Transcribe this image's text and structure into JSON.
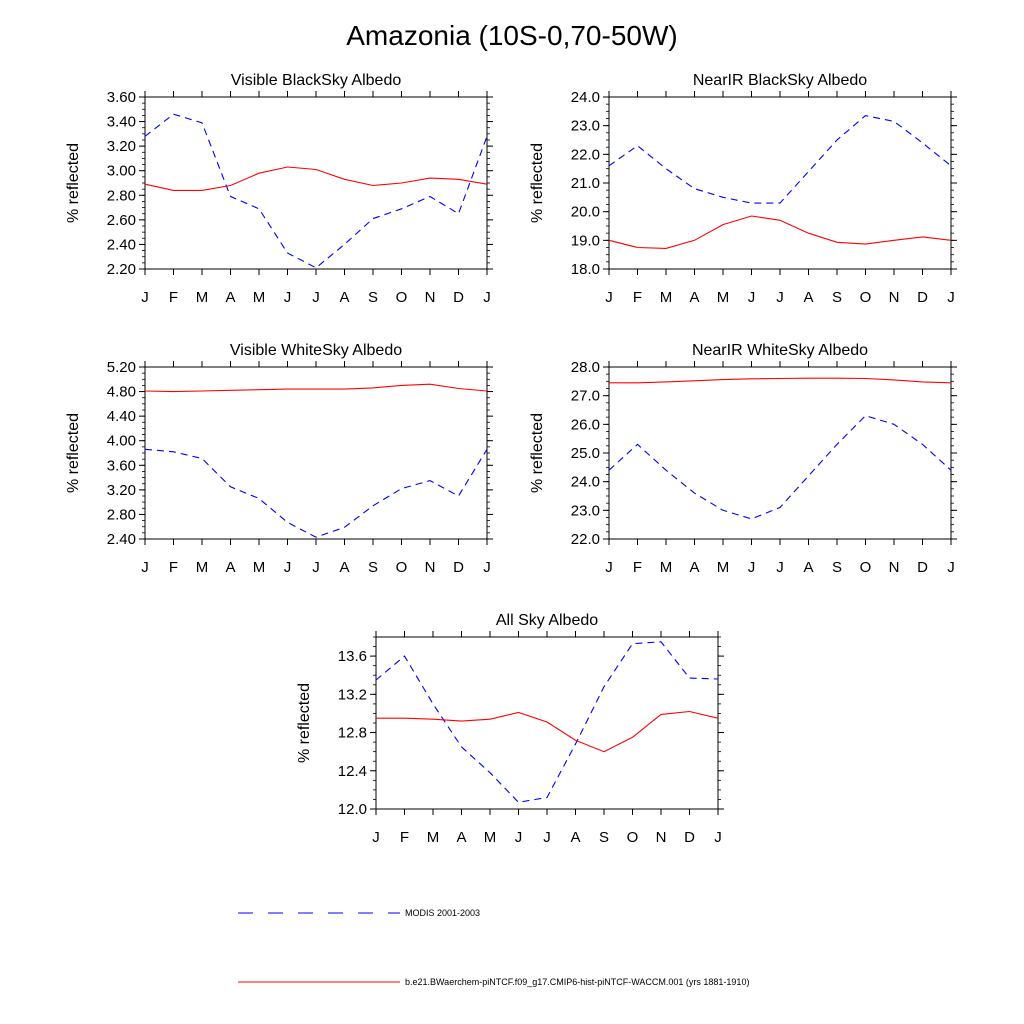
{
  "title": "Amazonia (10S-0,70-50W)",
  "legend": [
    {
      "label": "MODIS 2001-2003",
      "color": "#0000ff",
      "dash": true
    },
    {
      "label": "b.e21.BWaerchem-piNTCF.f09_g17.CMIP6-hist-piNTCF-WACCM.001 (yrs 1881-1910)",
      "color": "#ff0000",
      "dash": false
    }
  ],
  "chart_data": [
    {
      "type": "line",
      "title": "Visible BlackSky Albedo",
      "ylabel": "% reflected",
      "categories": [
        "J",
        "F",
        "M",
        "A",
        "M",
        "J",
        "J",
        "A",
        "S",
        "O",
        "N",
        "D",
        "J"
      ],
      "ylim": [
        2.2,
        3.6
      ],
      "yticks": [
        "2.20",
        "2.40",
        "2.60",
        "2.80",
        "3.00",
        "3.20",
        "3.40",
        "3.60"
      ],
      "series": [
        {
          "name": "MODIS 2001-2003",
          "color": "#0000ff",
          "dash": true,
          "values": [
            3.28,
            3.46,
            3.39,
            2.79,
            2.69,
            2.33,
            2.21,
            2.4,
            2.61,
            2.69,
            2.79,
            2.65,
            3.28
          ]
        },
        {
          "name": "b.e21.BWaerchem-piNTCF.f09_g17.CMIP6-hist-piNTCF-WACCM.001 (yrs 1881-1910)",
          "color": "#ff0000",
          "dash": false,
          "values": [
            2.89,
            2.84,
            2.84,
            2.88,
            2.98,
            3.03,
            3.01,
            2.93,
            2.88,
            2.9,
            2.94,
            2.93,
            2.89
          ]
        }
      ]
    },
    {
      "type": "line",
      "title": "NearIR BlackSky Albedo",
      "ylabel": "% reflected",
      "categories": [
        "J",
        "F",
        "M",
        "A",
        "M",
        "J",
        "J",
        "A",
        "S",
        "O",
        "N",
        "D",
        "J"
      ],
      "ylim": [
        18.0,
        24.0
      ],
      "yticks": [
        "18.0",
        "19.0",
        "20.0",
        "21.0",
        "22.0",
        "23.0",
        "24.0"
      ],
      "series": [
        {
          "name": "MODIS 2001-2003",
          "color": "#0000ff",
          "dash": true,
          "values": [
            21.6,
            22.3,
            21.5,
            20.8,
            20.5,
            20.3,
            20.3,
            21.4,
            22.5,
            23.35,
            23.15,
            22.4,
            21.6
          ]
        },
        {
          "name": "b.e21.BWaerchem-piNTCF.f09_g17.CMIP6-hist-piNTCF-WACCM.001 (yrs 1881-1910)",
          "color": "#ff0000",
          "dash": false,
          "values": [
            19.0,
            18.75,
            18.72,
            19.0,
            19.55,
            19.85,
            19.7,
            19.25,
            18.93,
            18.87,
            19.0,
            19.12,
            19.0
          ]
        }
      ]
    },
    {
      "type": "line",
      "title": "Visible WhiteSky Albedo",
      "ylabel": "% reflected",
      "categories": [
        "J",
        "F",
        "M",
        "A",
        "M",
        "J",
        "J",
        "A",
        "S",
        "O",
        "N",
        "D",
        "J"
      ],
      "ylim": [
        2.4,
        5.2
      ],
      "yticks": [
        "2.40",
        "2.80",
        "3.20",
        "3.60",
        "4.00",
        "4.40",
        "4.80",
        "5.20"
      ],
      "series": [
        {
          "name": "MODIS 2001-2003",
          "color": "#0000ff",
          "dash": true,
          "values": [
            3.86,
            3.82,
            3.71,
            3.25,
            3.06,
            2.67,
            2.43,
            2.59,
            2.94,
            3.22,
            3.35,
            3.1,
            3.86
          ]
        },
        {
          "name": "b.e21.BWaerchem-piNTCF.f09_g17.CMIP6-hist-piNTCF-WACCM.001 (yrs 1881-1910)",
          "color": "#ff0000",
          "dash": false,
          "values": [
            4.81,
            4.8,
            4.81,
            4.82,
            4.83,
            4.84,
            4.84,
            4.84,
            4.86,
            4.9,
            4.92,
            4.85,
            4.81
          ]
        }
      ]
    },
    {
      "type": "line",
      "title": "NearIR WhiteSky Albedo",
      "ylabel": "% reflected",
      "categories": [
        "J",
        "F",
        "M",
        "A",
        "M",
        "J",
        "J",
        "A",
        "S",
        "O",
        "N",
        "D",
        "J"
      ],
      "ylim": [
        22.0,
        28.0
      ],
      "yticks": [
        "22.0",
        "23.0",
        "24.0",
        "25.0",
        "26.0",
        "27.0",
        "28.0"
      ],
      "series": [
        {
          "name": "MODIS 2001-2003",
          "color": "#0000ff",
          "dash": true,
          "values": [
            24.4,
            25.3,
            24.4,
            23.6,
            23.0,
            22.7,
            23.1,
            24.2,
            25.3,
            26.3,
            26.0,
            25.3,
            24.4
          ]
        },
        {
          "name": "b.e21.BWaerchem-piNTCF.f09_g17.CMIP6-hist-piNTCF-WACCM.001 (yrs 1881-1910)",
          "color": "#ff0000",
          "dash": false,
          "values": [
            27.45,
            27.45,
            27.48,
            27.52,
            27.56,
            27.59,
            27.6,
            27.61,
            27.61,
            27.6,
            27.55,
            27.48,
            27.45
          ]
        }
      ]
    },
    {
      "type": "line",
      "title": "All Sky Albedo",
      "ylabel": "% reflected",
      "categories": [
        "J",
        "F",
        "M",
        "A",
        "M",
        "J",
        "J",
        "A",
        "S",
        "O",
        "N",
        "D",
        "J"
      ],
      "ylim": [
        12.0,
        13.8
      ],
      "yticks": [
        "12.0",
        "12.4",
        "12.8",
        "13.2",
        "13.6"
      ],
      "ytick_values": [
        12.0,
        12.4,
        12.8,
        13.2,
        13.6
      ],
      "series": [
        {
          "name": "MODIS 2001-2003",
          "color": "#0000ff",
          "dash": true,
          "values": [
            13.35,
            13.6,
            13.1,
            12.65,
            12.38,
            12.07,
            12.12,
            12.68,
            13.28,
            13.73,
            13.75,
            13.37,
            13.36
          ]
        },
        {
          "name": "b.e21.BWaerchem-piNTCF.f09_g17.CMIP6-hist-piNTCF-WACCM.001 (yrs 1881-1910)",
          "color": "#ff0000",
          "dash": false,
          "values": [
            12.95,
            12.95,
            12.94,
            12.92,
            12.94,
            13.01,
            12.91,
            12.72,
            12.6,
            12.75,
            12.99,
            13.02,
            12.95
          ]
        }
      ]
    }
  ]
}
